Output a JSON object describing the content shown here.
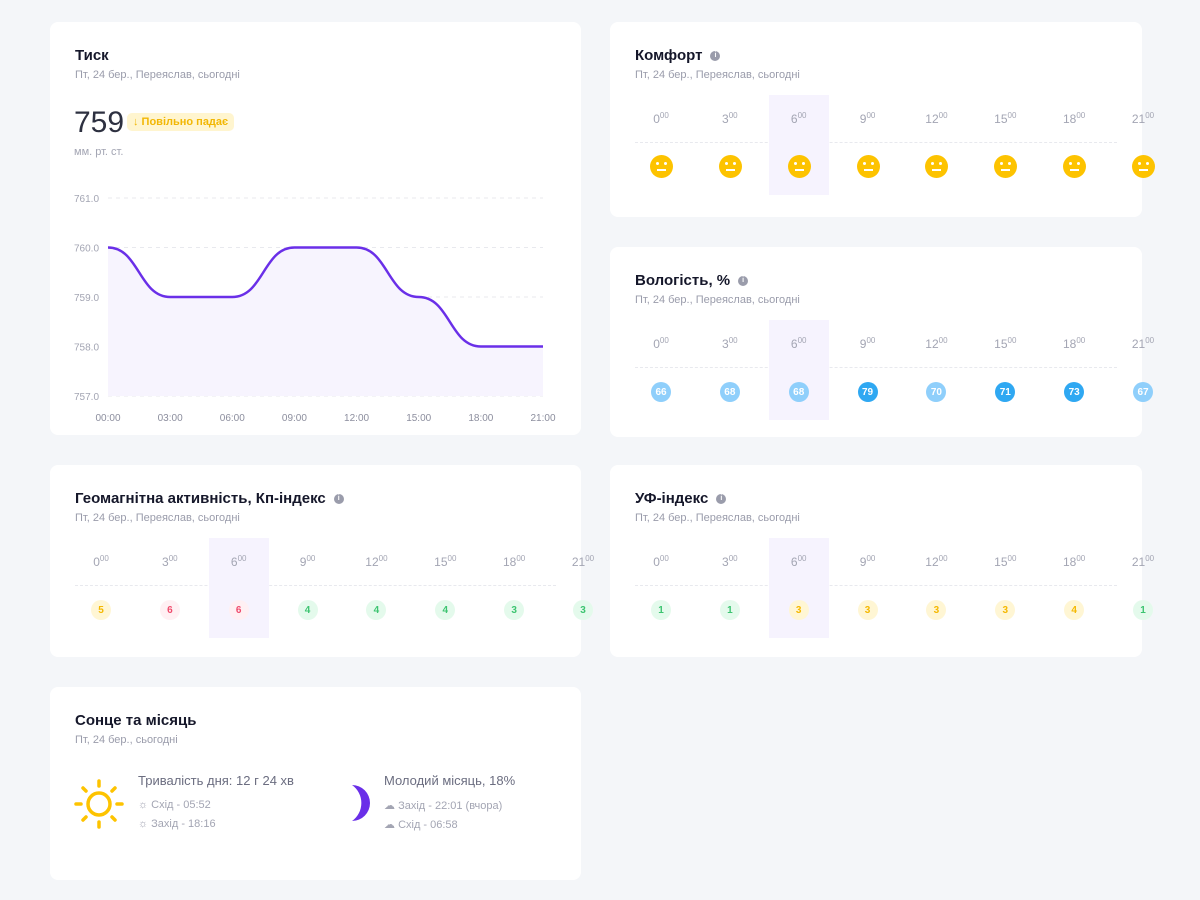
{
  "subtitle": "Пт, 24 бер., Переяслав, сьогодні",
  "hours": [
    "0",
    "3",
    "6",
    "9",
    "12",
    "15",
    "18",
    "21"
  ],
  "hour_suffix": "00",
  "pressure": {
    "title": "Тиск",
    "value": "759",
    "trend": "↓ Повільно падає",
    "unit": "мм. рт. ст.",
    "chart_data": {
      "type": "area",
      "x": [
        "00:00",
        "03:00",
        "06:00",
        "09:00",
        "12:00",
        "15:00",
        "18:00",
        "21:00"
      ],
      "values": [
        760,
        759,
        759,
        760,
        760,
        759,
        758,
        758
      ],
      "ylim": [
        757,
        761
      ],
      "yticks": [
        "757.0",
        "758.0",
        "759.0",
        "760.0",
        "761.0"
      ],
      "color": "#6a2fe8"
    }
  },
  "comfort": {
    "title": "Комфорт",
    "icons": [
      "neutral-face",
      "neutral-face",
      "neutral-face",
      "neutral-face",
      "neutral-face",
      "neutral-face",
      "neutral-face",
      "neutral-face"
    ]
  },
  "humidity": {
    "title": "Вологість, %",
    "values": [
      "66",
      "68",
      "68",
      "79",
      "70",
      "71",
      "73",
      "67"
    ],
    "levels": [
      "l",
      "l",
      "l",
      "h",
      "l",
      "h",
      "h",
      "l"
    ]
  },
  "geomagnetic": {
    "title": "Геомагнітна активність, Кп-індекс",
    "values": [
      "5",
      "6",
      "6",
      "4",
      "4",
      "4",
      "3",
      "3"
    ],
    "levels": [
      "y",
      "r",
      "r",
      "g",
      "g",
      "g",
      "g",
      "g"
    ]
  },
  "uv": {
    "title": "УФ-індекс",
    "values": [
      "1",
      "1",
      "3",
      "3",
      "3",
      "3",
      "4",
      "1"
    ],
    "levels": [
      "g",
      "g",
      "y",
      "y",
      "y",
      "y",
      "y",
      "g"
    ]
  },
  "sun_moon": {
    "title": "Сонце та місяць",
    "subtitle": "Пт, 24 бер., сьогодні",
    "day_length": "Тривалість дня: 12 г 24 хв",
    "sunrise": "Схід - 05:52",
    "sunset": "Захід - 18:16",
    "moon_phase": "Молодий місяць, 18%",
    "moonset": "Захід - 22:01 (вчора)",
    "moonrise": "Схід - 06:58"
  }
}
